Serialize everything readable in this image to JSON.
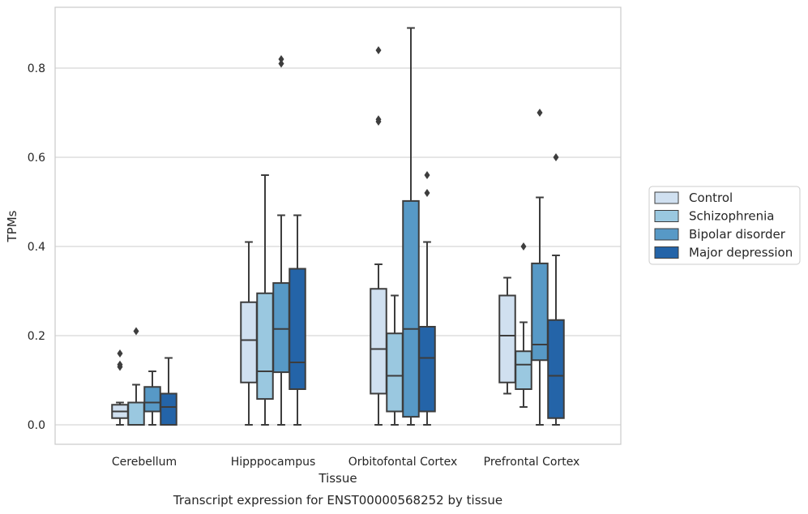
{
  "chart_data": {
    "type": "boxplot",
    "title": "Transcript expression for ENST00000568252 by tissue",
    "xlabel": "Tissue",
    "ylabel": "TPMs",
    "ylim": [
      -0.042,
      0.937
    ],
    "yticks": [
      "0.0",
      "0.2",
      "0.4",
      "0.6",
      "0.8"
    ],
    "grid": "horizontal",
    "legend_position": "right",
    "categories": [
      "Cerebellum",
      "Hipppocampus",
      "Orbitofontal Cortex",
      "Prefrontal Cortex"
    ],
    "series": [
      {
        "name": "Control",
        "color": "#d0e0f0",
        "boxes": [
          {
            "whisker_low": 0.0,
            "q1": 0.015,
            "median": 0.03,
            "q3": 0.045,
            "whisker_high": 0.05,
            "outliers": [
              0.13,
              0.135,
              0.16
            ]
          },
          {
            "whisker_low": 0.0,
            "q1": 0.095,
            "median": 0.19,
            "q3": 0.275,
            "whisker_high": 0.41,
            "outliers": []
          },
          {
            "whisker_low": 0.0,
            "q1": 0.07,
            "median": 0.17,
            "q3": 0.305,
            "whisker_high": 0.36,
            "outliers": [
              0.68,
              0.685,
              0.84
            ]
          },
          {
            "whisker_low": 0.07,
            "q1": 0.095,
            "median": 0.2,
            "q3": 0.29,
            "whisker_high": 0.33,
            "outliers": []
          }
        ]
      },
      {
        "name": "Schizophrenia",
        "color": "#9ac8e0",
        "boxes": [
          {
            "whisker_low": 0.0,
            "q1": 0.0,
            "median": 0.0,
            "q3": 0.05,
            "whisker_high": 0.09,
            "outliers": [
              0.21
            ]
          },
          {
            "whisker_low": 0.0,
            "q1": 0.058,
            "median": 0.12,
            "q3": 0.295,
            "whisker_high": 0.56,
            "outliers": []
          },
          {
            "whisker_low": 0.0,
            "q1": 0.03,
            "median": 0.11,
            "q3": 0.205,
            "whisker_high": 0.29,
            "outliers": []
          },
          {
            "whisker_low": 0.04,
            "q1": 0.08,
            "median": 0.135,
            "q3": 0.165,
            "whisker_high": 0.23,
            "outliers": [
              0.4
            ]
          }
        ]
      },
      {
        "name": "Bipolar disorder",
        "color": "#5799c6",
        "boxes": [
          {
            "whisker_low": 0.0,
            "q1": 0.03,
            "median": 0.05,
            "q3": 0.085,
            "whisker_high": 0.12,
            "outliers": []
          },
          {
            "whisker_low": 0.0,
            "q1": 0.118,
            "median": 0.215,
            "q3": 0.318,
            "whisker_high": 0.47,
            "outliers": [
              0.81,
              0.82
            ]
          },
          {
            "whisker_low": 0.0,
            "q1": 0.018,
            "median": 0.215,
            "q3": 0.502,
            "whisker_high": 0.89,
            "outliers": []
          },
          {
            "whisker_low": 0.0,
            "q1": 0.145,
            "median": 0.18,
            "q3": 0.362,
            "whisker_high": 0.51,
            "outliers": [
              0.7
            ]
          }
        ]
      },
      {
        "name": "Major depression",
        "color": "#2464a8",
        "boxes": [
          {
            "whisker_low": 0.0,
            "q1": 0.0,
            "median": 0.04,
            "q3": 0.07,
            "whisker_high": 0.15,
            "outliers": []
          },
          {
            "whisker_low": 0.0,
            "q1": 0.08,
            "median": 0.14,
            "q3": 0.35,
            "whisker_high": 0.47,
            "outliers": []
          },
          {
            "whisker_low": 0.0,
            "q1": 0.03,
            "median": 0.15,
            "q3": 0.22,
            "whisker_high": 0.41,
            "outliers": [
              0.52,
              0.56
            ]
          },
          {
            "whisker_low": 0.0,
            "q1": 0.015,
            "median": 0.11,
            "q3": 0.235,
            "whisker_high": 0.38,
            "outliers": [
              0.6
            ]
          }
        ]
      }
    ]
  }
}
